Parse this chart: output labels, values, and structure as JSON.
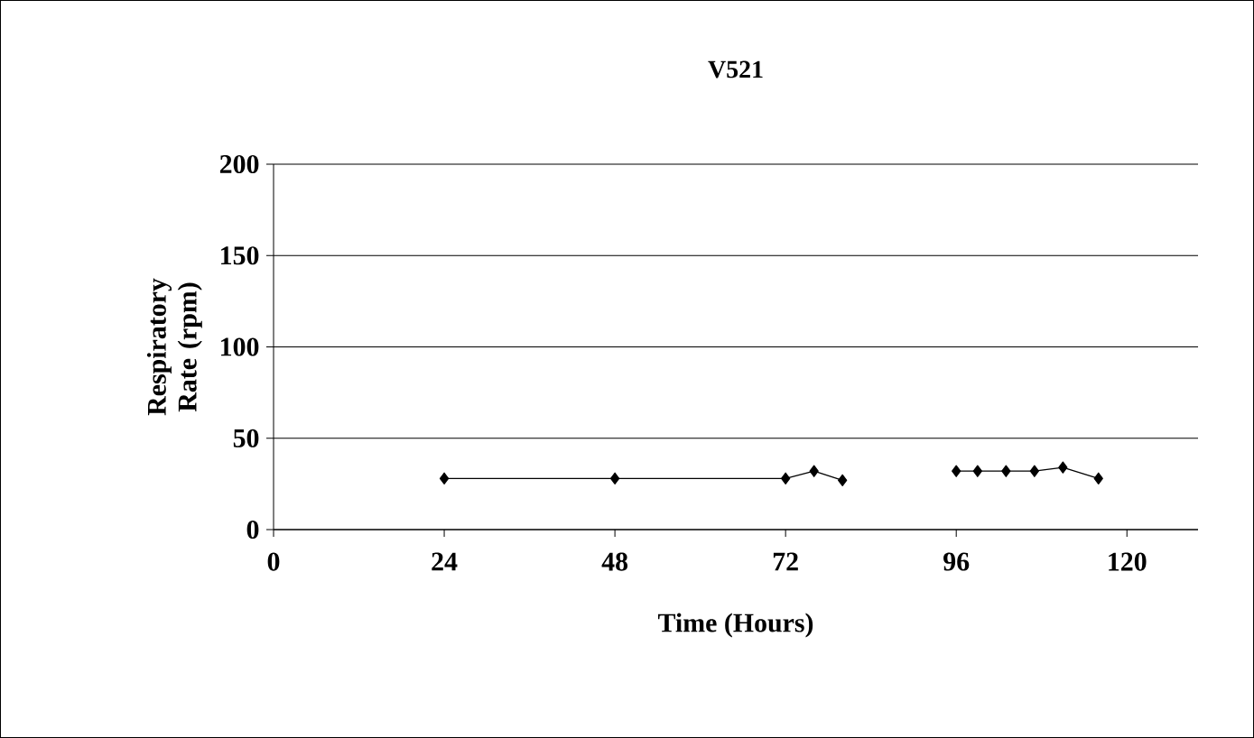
{
  "chart_data": {
    "type": "line",
    "title": "V521",
    "xlabel": "Time (Hours)",
    "ylabel": "Respiratory Rate (rpm)",
    "series": [
      {
        "color": "#000000",
        "x": [
          24,
          48,
          72,
          76,
          80
        ],
        "values": [
          28,
          28,
          28,
          32,
          27
        ]
      },
      {
        "color": "#000000",
        "x": [
          96,
          99,
          103,
          107,
          111,
          116
        ],
        "values": [
          32,
          32,
          32,
          32,
          34,
          28
        ]
      }
    ],
    "xlim": [
      0,
      130
    ],
    "xticks": [
      0,
      24,
      48,
      72,
      96,
      120
    ],
    "ylim": [
      0,
      200
    ],
    "yticks": [
      0,
      50,
      100,
      150,
      200
    ],
    "grid": "y",
    "marker": "diamond",
    "line_style": "solid"
  }
}
